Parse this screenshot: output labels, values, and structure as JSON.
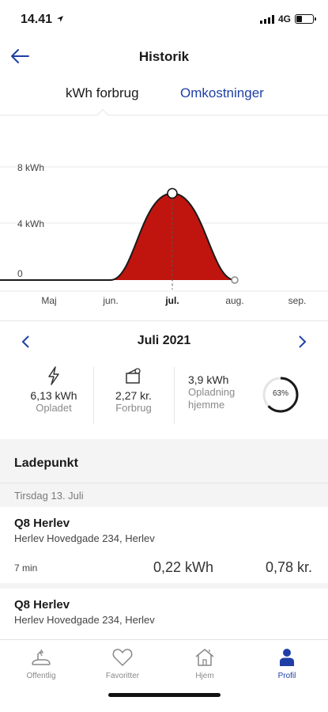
{
  "status": {
    "time": "14.41",
    "network": "4G"
  },
  "header": {
    "title": "Historik"
  },
  "tabs": [
    {
      "label": "kWh forbrug",
      "active": true
    },
    {
      "label": "Omkostninger",
      "active": false
    }
  ],
  "colors": {
    "accent": "#1f3fa6",
    "chart_fill": "#c0150e",
    "stroke": "#1a1a1a"
  },
  "chart_data": {
    "type": "area",
    "categories": [
      "Maj",
      "jun.",
      "jul.",
      "aug.",
      "sep."
    ],
    "values": [
      0,
      0,
      6.13,
      0,
      null
    ],
    "ylabels": [
      "8 kWh",
      "4 kWh",
      "0"
    ],
    "ylim": [
      0,
      8
    ],
    "selected": "jul.",
    "grid": true
  },
  "month": {
    "label": "Juli 2021"
  },
  "stats": {
    "charged_value": "6,13 kWh",
    "charged_label": "Opladet",
    "usage_value": "2,27 kr.",
    "usage_label": "Forbrug",
    "home_value": "3,9 kWh",
    "home_label": "Opladning hjemme",
    "home_percent": 63,
    "home_percent_label": "63%"
  },
  "list": {
    "section_title": "Ladepunkt",
    "date": "Tirsdag 13. Juli",
    "entries": [
      {
        "name": "Q8 Herlev",
        "address": "Herlev Hovedgade 234, Herlev",
        "duration": "7 min",
        "kwh": "0,22 kWh",
        "cost": "0,78 kr."
      },
      {
        "name": "Q8 Herlev",
        "address": "Herlev Hovedgade 234, Herlev"
      }
    ]
  },
  "tabbar": [
    {
      "label": "Offentlig",
      "icon": "public-charger-icon"
    },
    {
      "label": "Favoritter",
      "icon": "heart-icon"
    },
    {
      "label": "Hjem",
      "icon": "home-charger-icon"
    },
    {
      "label": "Profil",
      "icon": "person-icon",
      "active": true
    }
  ]
}
